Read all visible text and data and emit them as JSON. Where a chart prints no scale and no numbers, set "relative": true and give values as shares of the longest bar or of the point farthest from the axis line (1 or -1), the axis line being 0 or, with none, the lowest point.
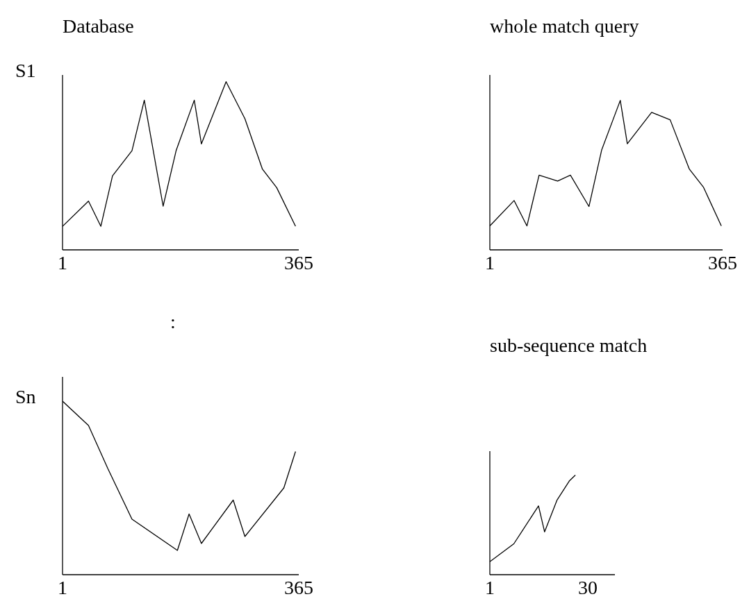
{
  "chart_data": [
    {
      "type": "line",
      "title": "Database",
      "ylabel": "S1",
      "relative": true,
      "color": "#000000",
      "marker": "none",
      "xlim": [
        1,
        365
      ],
      "xticks": [
        1,
        365
      ],
      "x": [
        1,
        41,
        60,
        78,
        108,
        127,
        156,
        176,
        204,
        215,
        253,
        282,
        309,
        331,
        360
      ],
      "values": [
        0.14,
        0.29,
        0.14,
        0.44,
        0.59,
        0.89,
        0.26,
        0.59,
        0.89,
        0.63,
        1,
        0.78,
        0.48,
        0.37,
        0.14
      ]
    },
    {
      "type": "line",
      "title": "whole match query",
      "relative": true,
      "color": "#000000",
      "marker": "none",
      "xlim": [
        1,
        365
      ],
      "xticks": [
        1,
        365
      ],
      "x": [
        1,
        39,
        59,
        78,
        107,
        127,
        156,
        176,
        205,
        216,
        254,
        283,
        313,
        335,
        363
      ],
      "values": [
        0.16,
        0.33,
        0.16,
        0.5,
        0.46,
        0.5,
        0.29,
        0.67,
        1,
        0.71,
        0.92,
        0.87,
        0.54,
        0.42,
        0.16
      ]
    },
    {
      "type": "line",
      "ylabel": "Sn",
      "annotations": [
        ":"
      ],
      "relative": true,
      "color": "#000000",
      "marker": "none",
      "xlim": [
        1,
        365
      ],
      "xticks": [
        1,
        365
      ],
      "x": [
        1,
        41,
        71,
        108,
        178,
        196,
        215,
        264,
        282,
        342,
        360
      ],
      "values": [
        1,
        0.86,
        0.61,
        0.32,
        0.14,
        0.35,
        0.18,
        0.43,
        0.22,
        0.5,
        0.71
      ]
    },
    {
      "type": "line",
      "title": "sub-sequence match",
      "relative": true,
      "color": "#000000",
      "marker": "none",
      "xlim": [
        1,
        38
      ],
      "xticks": [
        1,
        30
      ],
      "x": [
        1,
        8.1,
        15.4,
        17.2,
        20.9,
        24.5,
        26.3
      ],
      "values": [
        0.13,
        0.31,
        0.69,
        0.43,
        0.75,
        0.94,
        1
      ]
    }
  ]
}
